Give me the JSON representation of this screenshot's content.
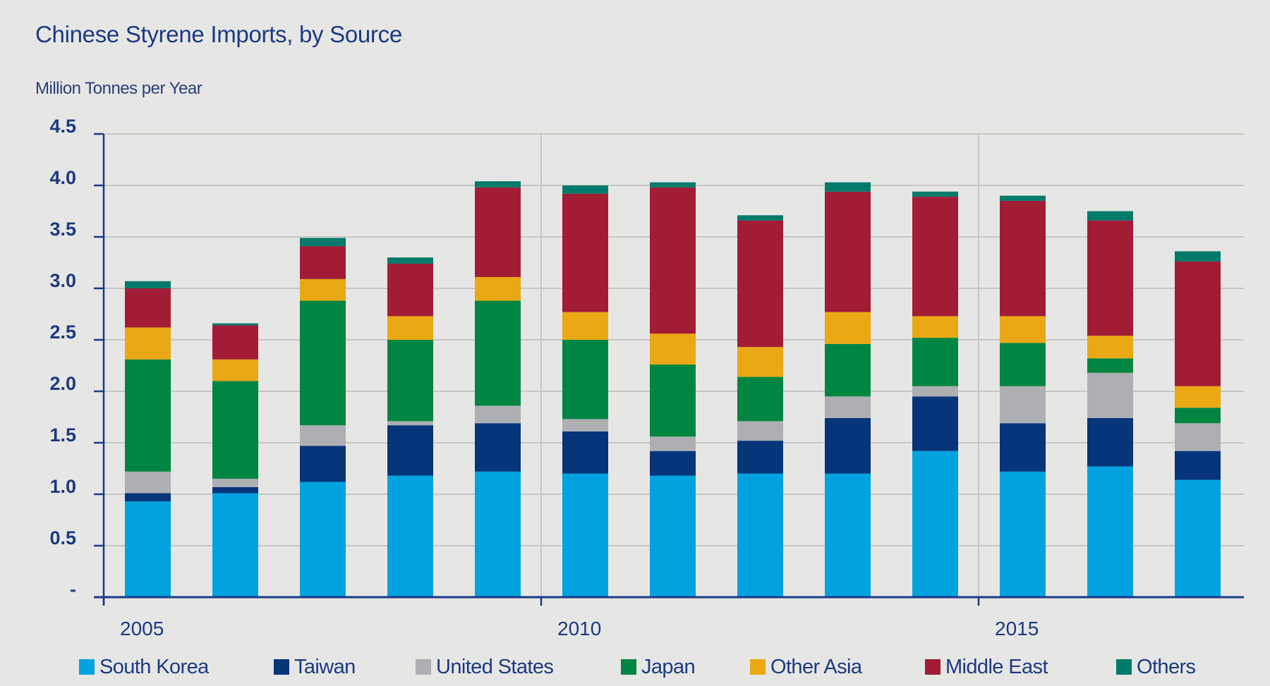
{
  "chart_data": {
    "type": "bar",
    "stacked": true,
    "title": "Chinese Styrene Imports, by Source",
    "ylabel": "Million Tonnes per Year",
    "xlabel": "",
    "ylim": [
      0,
      4.5
    ],
    "yticks": [
      0,
      0.5,
      1.0,
      1.5,
      2.0,
      2.5,
      3.0,
      3.5,
      4.0,
      4.5
    ],
    "ytick_labels": [
      "-",
      "0.5",
      "1.0",
      "1.5",
      "2.0",
      "2.5",
      "3.0",
      "3.5",
      "4.0",
      "4.5"
    ],
    "xtick_labels": [
      "2005",
      "2010",
      "2015"
    ],
    "grid": true,
    "legend_position": "bottom",
    "categories": [
      "2005",
      "2006",
      "2007",
      "2008",
      "2009",
      "2010",
      "2011",
      "2012",
      "2013",
      "2014",
      "2015",
      "2016",
      "2017"
    ],
    "series": [
      {
        "name": "South Korea",
        "color": "#00a3e0",
        "values": [
          0.93,
          1.01,
          1.12,
          1.18,
          1.22,
          1.2,
          1.18,
          1.2,
          1.2,
          1.42,
          1.22,
          1.27,
          1.14
        ]
      },
      {
        "name": "Taiwan",
        "color": "#06357a",
        "values": [
          0.08,
          0.06,
          0.35,
          0.49,
          0.47,
          0.41,
          0.24,
          0.32,
          0.54,
          0.53,
          0.47,
          0.47,
          0.28
        ]
      },
      {
        "name": "United States",
        "color": "#adafb2",
        "values": [
          0.21,
          0.08,
          0.2,
          0.04,
          0.17,
          0.12,
          0.14,
          0.19,
          0.21,
          0.1,
          0.36,
          0.44,
          0.27
        ]
      },
      {
        "name": "Japan",
        "color": "#008542",
        "values": [
          1.09,
          0.95,
          1.21,
          0.79,
          1.02,
          0.77,
          0.7,
          0.43,
          0.51,
          0.47,
          0.42,
          0.14,
          0.15
        ]
      },
      {
        "name": "Other Asia",
        "color": "#eaa814",
        "values": [
          0.31,
          0.21,
          0.21,
          0.23,
          0.23,
          0.27,
          0.3,
          0.29,
          0.31,
          0.21,
          0.26,
          0.22,
          0.21
        ]
      },
      {
        "name": "Middle East",
        "color": "#a31c36",
        "values": [
          0.38,
          0.33,
          0.32,
          0.51,
          0.87,
          1.15,
          1.42,
          1.23,
          1.17,
          1.16,
          1.12,
          1.12,
          1.21
        ]
      },
      {
        "name": "Others",
        "color": "#007a6a",
        "values": [
          0.07,
          0.02,
          0.08,
          0.06,
          0.06,
          0.08,
          0.05,
          0.05,
          0.09,
          0.05,
          0.05,
          0.09,
          0.1
        ]
      }
    ]
  }
}
